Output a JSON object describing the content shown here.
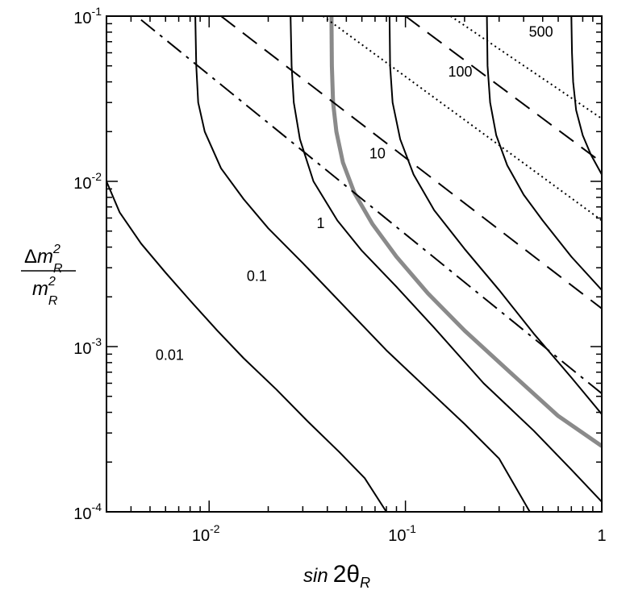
{
  "chart_data": {
    "type": "line",
    "x_scale": "log",
    "y_scale": "log",
    "xlim": [
      0.003,
      1
    ],
    "ylim": [
      0.0001,
      0.1
    ],
    "grid": false,
    "x_ticks": [
      {
        "value": 0.01,
        "base": "10",
        "exp": "-2"
      },
      {
        "value": 0.1,
        "base": "10",
        "exp": "-1"
      },
      {
        "value": 1,
        "base": "1",
        "exp": ""
      }
    ],
    "y_ticks": [
      {
        "value": 0.0001,
        "base": "10",
        "exp": "-4"
      },
      {
        "value": 0.001,
        "base": "10",
        "exp": "-3"
      },
      {
        "value": 0.01,
        "base": "10",
        "exp": "-2"
      },
      {
        "value": 0.1,
        "base": "10",
        "exp": "-1"
      }
    ],
    "xlabel": {
      "prefix": "sin",
      "main": "2θ",
      "sub": "R"
    },
    "ylabel": {
      "num_delta": "Δ",
      "num_m": "m",
      "den_m": "m",
      "sup": "2",
      "sub": "R"
    },
    "contour_labels": [
      {
        "text": "0.01",
        "x": 0.0063,
        "y": 0.00083
      },
      {
        "text": "0.1",
        "x": 0.0175,
        "y": 0.0025
      },
      {
        "text": "1",
        "x": 0.037,
        "y": 0.0052
      },
      {
        "text": "10",
        "x": 0.072,
        "y": 0.0138
      },
      {
        "text": "100",
        "x": 0.19,
        "y": 0.043
      },
      {
        "text": "500",
        "x": 0.49,
        "y": 0.075
      }
    ],
    "series": [
      {
        "style": "solid",
        "color": "#000000",
        "width": 2,
        "points": [
          [
            0.003,
            0.01
          ],
          [
            0.0035,
            0.0065
          ],
          [
            0.0045,
            0.0042
          ],
          [
            0.006,
            0.0028
          ],
          [
            0.008,
            0.0019
          ],
          [
            0.011,
            0.00125
          ],
          [
            0.015,
            0.00085
          ],
          [
            0.022,
            0.00055
          ],
          [
            0.032,
            0.00035
          ],
          [
            0.046,
            0.00023
          ],
          [
            0.062,
            0.00016
          ],
          [
            0.08,
            0.0001
          ]
        ]
      },
      {
        "style": "solid",
        "color": "#000000",
        "width": 2,
        "points": [
          [
            0.0085,
            0.1
          ],
          [
            0.0086,
            0.05
          ],
          [
            0.0088,
            0.03
          ],
          [
            0.0095,
            0.02
          ],
          [
            0.0115,
            0.012
          ],
          [
            0.015,
            0.0078
          ],
          [
            0.02,
            0.0052
          ],
          [
            0.03,
            0.0032
          ],
          [
            0.05,
            0.0017
          ],
          [
            0.08,
            0.00095
          ],
          [
            0.13,
            0.00055
          ],
          [
            0.2,
            0.00034
          ],
          [
            0.3,
            0.00021
          ],
          [
            0.43,
            0.0001
          ]
        ]
      },
      {
        "style": "solid",
        "color": "#000000",
        "width": 2,
        "points": [
          [
            0.026,
            0.1
          ],
          [
            0.0263,
            0.05
          ],
          [
            0.027,
            0.03
          ],
          [
            0.029,
            0.018
          ],
          [
            0.034,
            0.01
          ],
          [
            0.045,
            0.0058
          ],
          [
            0.06,
            0.0038
          ],
          [
            0.09,
            0.0023
          ],
          [
            0.14,
            0.0013
          ],
          [
            0.25,
            0.0006
          ],
          [
            0.45,
            0.00031
          ],
          [
            0.7,
            0.00018
          ],
          [
            1,
            0.000115
          ]
        ]
      },
      {
        "style": "solid",
        "color": "#000000",
        "width": 2,
        "points": [
          [
            0.083,
            0.1
          ],
          [
            0.0835,
            0.05
          ],
          [
            0.086,
            0.03
          ],
          [
            0.094,
            0.018
          ],
          [
            0.11,
            0.011
          ],
          [
            0.14,
            0.0067
          ],
          [
            0.2,
            0.0039
          ],
          [
            0.3,
            0.0022
          ],
          [
            0.45,
            0.0012
          ],
          [
            0.7,
            0.00065
          ],
          [
            1,
            0.00039
          ]
        ]
      },
      {
        "style": "solid",
        "color": "#000000",
        "width": 2,
        "points": [
          [
            0.26,
            0.1
          ],
          [
            0.262,
            0.05
          ],
          [
            0.27,
            0.03
          ],
          [
            0.29,
            0.019
          ],
          [
            0.33,
            0.0125
          ],
          [
            0.4,
            0.0083
          ],
          [
            0.5,
            0.0058
          ],
          [
            0.7,
            0.0035
          ],
          [
            1,
            0.0022
          ]
        ]
      },
      {
        "style": "solid",
        "color": "#000000",
        "width": 2,
        "points": [
          [
            0.7,
            0.1
          ],
          [
            0.705,
            0.06
          ],
          [
            0.715,
            0.04
          ],
          [
            0.74,
            0.027
          ],
          [
            0.8,
            0.019
          ],
          [
            0.88,
            0.0145
          ],
          [
            1,
            0.011
          ]
        ]
      },
      {
        "style": "solid",
        "color": "#8a8a8a",
        "width": 5,
        "points": [
          [
            0.042,
            0.1
          ],
          [
            0.0422,
            0.05
          ],
          [
            0.0428,
            0.03
          ],
          [
            0.0445,
            0.02
          ],
          [
            0.048,
            0.013
          ],
          [
            0.055,
            0.0085
          ],
          [
            0.068,
            0.0055
          ],
          [
            0.09,
            0.0035
          ],
          [
            0.13,
            0.0021
          ],
          [
            0.2,
            0.00125
          ],
          [
            0.35,
            0.00068
          ],
          [
            0.6,
            0.00038
          ],
          [
            1,
            0.00025
          ]
        ]
      },
      {
        "style": "dashdot",
        "color": "#000000",
        "width": 2,
        "points": [
          [
            0.0045,
            0.095
          ],
          [
            1,
            0.00052
          ]
        ]
      },
      {
        "style": "dashed",
        "color": "#000000",
        "width": 2,
        "points": [
          [
            0.0115,
            0.1
          ],
          [
            1,
            0.0017
          ]
        ]
      },
      {
        "style": "dotted",
        "color": "#000000",
        "width": 2,
        "points": [
          [
            0.038,
            0.1
          ],
          [
            1,
            0.0058
          ]
        ]
      },
      {
        "style": "dashed",
        "color": "#000000",
        "width": 2,
        "points": [
          [
            0.1,
            0.1
          ],
          [
            1,
            0.013
          ]
        ]
      },
      {
        "style": "dotted",
        "color": "#000000",
        "width": 2,
        "points": [
          [
            0.17,
            0.1
          ],
          [
            1,
            0.024
          ]
        ]
      }
    ]
  }
}
